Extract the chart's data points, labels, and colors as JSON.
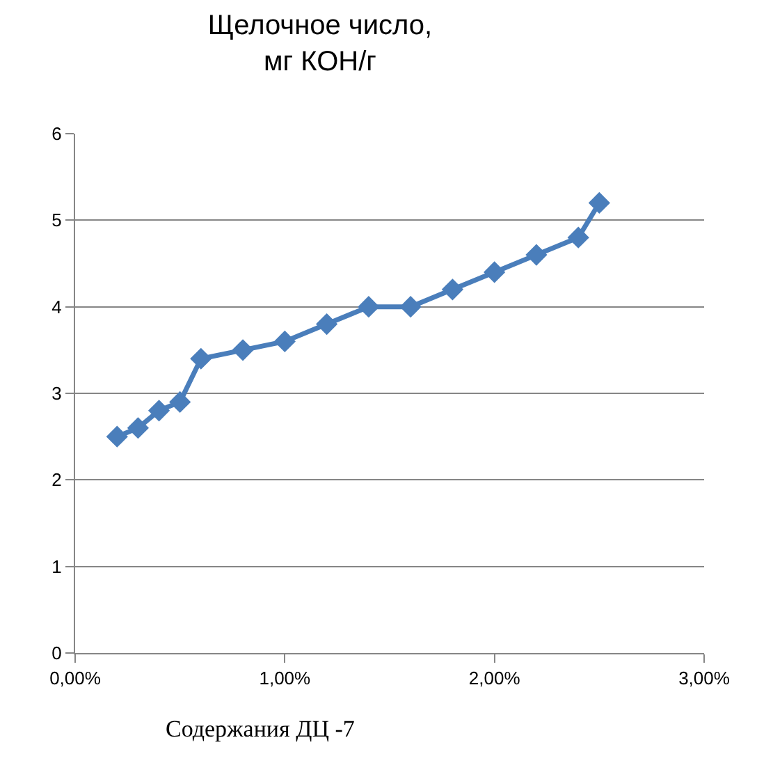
{
  "chart_data": {
    "type": "line",
    "title": "Щелочное число,\nмг КОН/г",
    "xlabel": "Содержания ДЦ -7",
    "x": [
      0.2,
      0.3,
      0.4,
      0.5,
      0.6,
      0.8,
      1.0,
      1.2,
      1.4,
      1.6,
      1.8,
      2.0,
      2.2,
      2.4,
      2.5
    ],
    "series": [
      {
        "color": "#4a7ebb",
        "values": [
          2.5,
          2.6,
          2.8,
          2.9,
          3.4,
          3.5,
          3.6,
          3.8,
          4.0,
          4.0,
          4.2,
          4.4,
          4.6,
          4.8,
          5.2
        ]
      }
    ],
    "xlim": [
      0,
      3
    ],
    "xticks": [
      {
        "value": 0,
        "label": "0,00%"
      },
      {
        "value": 1,
        "label": "1,00%"
      },
      {
        "value": 2,
        "label": "2,00%"
      },
      {
        "value": 3,
        "label": "3,00%"
      }
    ],
    "ylim": [
      0,
      6
    ],
    "yticks": [
      0,
      1,
      2,
      3,
      4,
      5,
      6
    ],
    "grid": "y",
    "marker": "diamond",
    "line_style": "solid"
  }
}
